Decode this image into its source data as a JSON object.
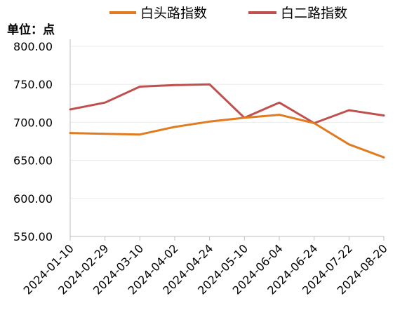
{
  "chart_data": {
    "type": "line",
    "title": "",
    "ylabel": "单位：点",
    "xlabel": "",
    "categories": [
      "2024-01-10",
      "2024-02-29",
      "2024-03-10",
      "2024-04-02",
      "2024-04-24",
      "2024-05-10",
      "2024-06-04",
      "2024-06-24",
      "2024-07-22",
      "2024-08-20"
    ],
    "y_ticks": [
      "550.00",
      "600.00",
      "650.00",
      "700.00",
      "750.00",
      "800.00"
    ],
    "ylim": [
      550,
      800
    ],
    "grid": true,
    "legend_position": "top",
    "series": [
      {
        "name": "白头路指数",
        "color": "#E07B20",
        "values": [
          686,
          685,
          684,
          694,
          701,
          706,
          710,
          699,
          671,
          654
        ]
      },
      {
        "name": "白二路指数",
        "color": "#C0504D",
        "values": [
          717,
          726,
          747,
          749,
          750,
          706,
          726,
          699,
          716,
          709
        ]
      }
    ]
  }
}
